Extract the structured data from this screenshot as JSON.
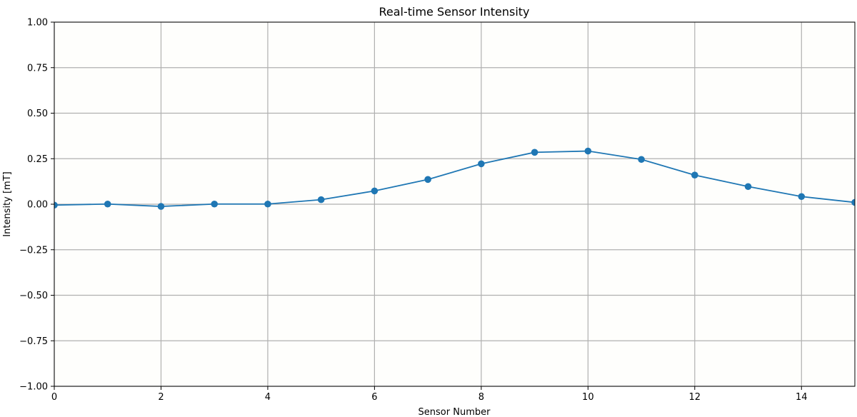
{
  "chart_data": {
    "type": "line",
    "title": "Real-time Sensor Intensity",
    "xlabel": "Sensor Number",
    "ylabel": "Intensity [mT]",
    "xlim": [
      0,
      15
    ],
    "ylim": [
      -1.0,
      1.0
    ],
    "xticks": [
      0,
      2,
      4,
      6,
      8,
      10,
      12,
      14
    ],
    "xtick_labels": [
      "0",
      "2",
      "4",
      "6",
      "8",
      "10",
      "12",
      "14"
    ],
    "yticks": [
      -1.0,
      -0.75,
      -0.5,
      -0.25,
      0.0,
      0.25,
      0.5,
      0.75,
      1.0
    ],
    "ytick_labels": [
      "−1.00",
      "−0.75",
      "−0.50",
      "−0.25",
      "0.00",
      "0.25",
      "0.50",
      "0.75",
      "1.00"
    ],
    "grid": true,
    "series": [
      {
        "color": "#1f77b4",
        "marker": "circle",
        "x": [
          0,
          1,
          2,
          3,
          4,
          5,
          6,
          7,
          8,
          9,
          10,
          11,
          12,
          13,
          14,
          15
        ],
        "y": [
          -0.005,
          0.001,
          -0.012,
          0.001,
          0.001,
          0.025,
          0.073,
          0.136,
          0.222,
          0.285,
          0.292,
          0.246,
          0.16,
          0.097,
          0.042,
          0.01
        ]
      }
    ]
  }
}
